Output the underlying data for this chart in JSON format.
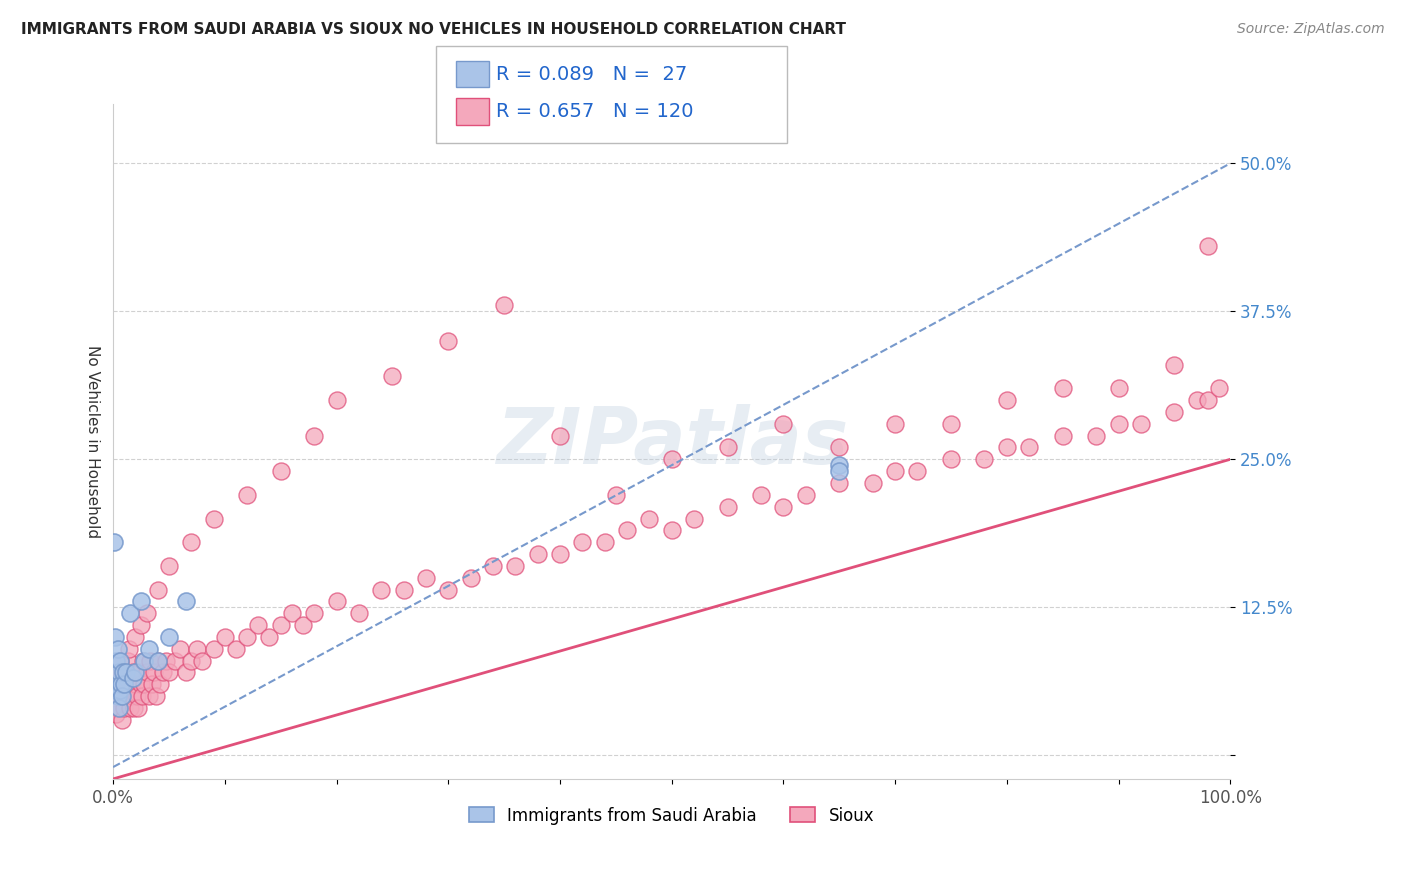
{
  "title": "IMMIGRANTS FROM SAUDI ARABIA VS SIOUX NO VEHICLES IN HOUSEHOLD CORRELATION CHART",
  "source": "Source: ZipAtlas.com",
  "ylabel": "No Vehicles in Household",
  "legend_label1": "Immigrants from Saudi Arabia",
  "legend_label2": "Sioux",
  "r1": 0.089,
  "n1": 27,
  "r2": 0.657,
  "n2": 120,
  "color1": "#aac4e8",
  "color2": "#f4a8bc",
  "line_color1": "#7799cc",
  "line_color2": "#e0507a",
  "watermark": "ZIPatlas",
  "xlim": [
    0.0,
    1.0
  ],
  "ylim": [
    -0.02,
    0.55
  ],
  "x_ticks": [
    0.0,
    0.1,
    0.2,
    0.3,
    0.4,
    0.5,
    0.6,
    0.7,
    0.8,
    0.9,
    1.0
  ],
  "x_tick_labels": [
    "0.0%",
    "",
    "",
    "",
    "",
    "",
    "",
    "",
    "",
    "",
    "100.0%"
  ],
  "y_ticks": [
    0.0,
    0.125,
    0.25,
    0.375,
    0.5
  ],
  "y_tick_labels": [
    "",
    "12.5%",
    "25.0%",
    "37.5%",
    "50.0%"
  ],
  "scatter1_x": [
    0.001,
    0.002,
    0.002,
    0.003,
    0.003,
    0.004,
    0.004,
    0.005,
    0.005,
    0.006,
    0.006,
    0.007,
    0.008,
    0.009,
    0.01,
    0.012,
    0.015,
    0.018,
    0.02,
    0.025,
    0.028,
    0.032,
    0.04,
    0.05,
    0.065,
    0.65,
    0.65
  ],
  "scatter1_y": [
    0.18,
    0.055,
    0.1,
    0.06,
    0.08,
    0.05,
    0.09,
    0.04,
    0.07,
    0.055,
    0.08,
    0.06,
    0.05,
    0.07,
    0.06,
    0.07,
    0.12,
    0.065,
    0.07,
    0.13,
    0.08,
    0.09,
    0.08,
    0.1,
    0.13,
    0.245,
    0.24
  ],
  "scatter2_x": [
    0.001,
    0.002,
    0.003,
    0.004,
    0.005,
    0.006,
    0.007,
    0.008,
    0.009,
    0.01,
    0.011,
    0.012,
    0.013,
    0.015,
    0.016,
    0.017,
    0.018,
    0.019,
    0.02,
    0.021,
    0.022,
    0.023,
    0.025,
    0.026,
    0.027,
    0.028,
    0.03,
    0.032,
    0.033,
    0.035,
    0.037,
    0.038,
    0.04,
    0.042,
    0.045,
    0.047,
    0.05,
    0.055,
    0.06,
    0.065,
    0.07,
    0.075,
    0.08,
    0.09,
    0.1,
    0.11,
    0.12,
    0.13,
    0.14,
    0.15,
    0.16,
    0.17,
    0.18,
    0.2,
    0.22,
    0.24,
    0.26,
    0.28,
    0.3,
    0.32,
    0.34,
    0.36,
    0.38,
    0.4,
    0.42,
    0.44,
    0.46,
    0.48,
    0.5,
    0.52,
    0.55,
    0.58,
    0.6,
    0.62,
    0.65,
    0.68,
    0.7,
    0.72,
    0.75,
    0.78,
    0.8,
    0.82,
    0.85,
    0.88,
    0.9,
    0.92,
    0.95,
    0.97,
    0.98,
    0.99,
    0.004,
    0.006,
    0.008,
    0.01,
    0.014,
    0.02,
    0.025,
    0.03,
    0.04,
    0.05,
    0.07,
    0.09,
    0.12,
    0.15,
    0.18,
    0.2,
    0.25,
    0.3,
    0.35,
    0.4,
    0.45,
    0.5,
    0.55,
    0.6,
    0.65,
    0.7,
    0.75,
    0.8,
    0.85,
    0.9,
    0.95,
    0.98
  ],
  "scatter2_y": [
    0.04,
    0.06,
    0.035,
    0.05,
    0.04,
    0.07,
    0.05,
    0.03,
    0.06,
    0.04,
    0.07,
    0.05,
    0.08,
    0.04,
    0.06,
    0.05,
    0.07,
    0.04,
    0.06,
    0.05,
    0.04,
    0.07,
    0.06,
    0.05,
    0.08,
    0.06,
    0.07,
    0.05,
    0.08,
    0.06,
    0.07,
    0.05,
    0.08,
    0.06,
    0.07,
    0.08,
    0.07,
    0.08,
    0.09,
    0.07,
    0.08,
    0.09,
    0.08,
    0.09,
    0.1,
    0.09,
    0.1,
    0.11,
    0.1,
    0.11,
    0.12,
    0.11,
    0.12,
    0.13,
    0.12,
    0.14,
    0.14,
    0.15,
    0.14,
    0.15,
    0.16,
    0.16,
    0.17,
    0.17,
    0.18,
    0.18,
    0.19,
    0.2,
    0.19,
    0.2,
    0.21,
    0.22,
    0.21,
    0.22,
    0.23,
    0.23,
    0.24,
    0.24,
    0.25,
    0.25,
    0.26,
    0.26,
    0.27,
    0.27,
    0.28,
    0.28,
    0.29,
    0.3,
    0.3,
    0.31,
    0.05,
    0.08,
    0.06,
    0.07,
    0.09,
    0.1,
    0.11,
    0.12,
    0.14,
    0.16,
    0.18,
    0.2,
    0.22,
    0.24,
    0.27,
    0.3,
    0.32,
    0.35,
    0.38,
    0.27,
    0.22,
    0.25,
    0.26,
    0.28,
    0.26,
    0.28,
    0.28,
    0.3,
    0.31,
    0.31,
    0.33,
    0.43
  ],
  "line1_start_y": -0.01,
  "line1_end_y": 0.5,
  "line2_start_y": -0.02,
  "line2_end_y": 0.25
}
